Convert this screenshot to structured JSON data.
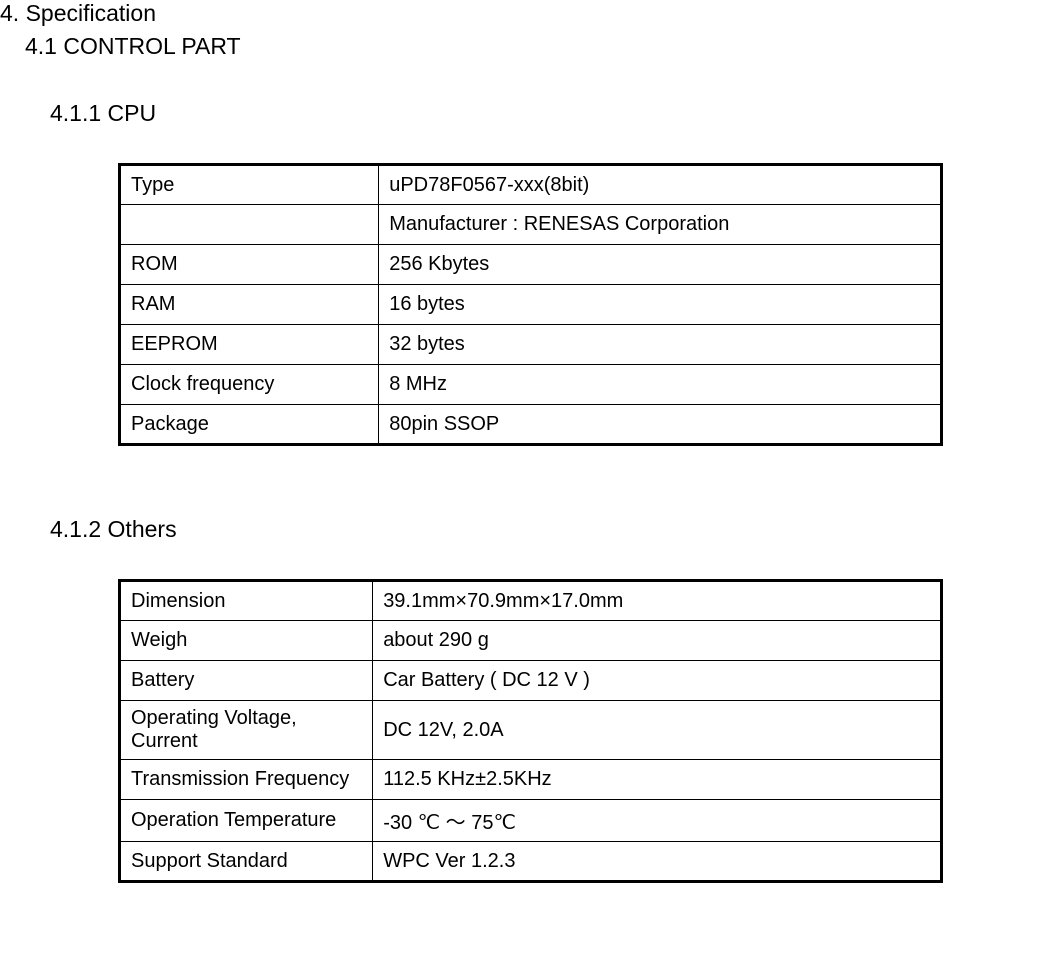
{
  "headings": {
    "section": "4. Specification",
    "subsection": "4.1 CONTROL PART",
    "subsub1": "4.1.1 CPU",
    "subsub2": "4.1.2 Others"
  },
  "cpu_table": {
    "rows": [
      {
        "label": "Type",
        "value": "uPD78F0567-xxx(8bit)"
      },
      {
        "label": "",
        "value": "Manufacturer : RENESAS Corporation"
      },
      {
        "label": "ROM",
        "value": "256 Kbytes"
      },
      {
        "label": "RAM",
        "value": "16 bytes"
      },
      {
        "label": "EEPROM",
        "value": "32 bytes"
      },
      {
        "label": "Clock frequency",
        "value": " 8 MHz"
      },
      {
        "label": "Package",
        "value": "80pin SSOP"
      }
    ]
  },
  "others_table": {
    "rows": [
      {
        "label": "Dimension",
        "value": "39.1mm×70.9mm×17.0mm"
      },
      {
        "label": "Weigh",
        "value": "about 290 g"
      },
      {
        "label": "Battery",
        "value": "Car Battery ( DC 12 V )"
      },
      {
        "label": "Operating Voltage, Current",
        "value": "DC 12V,  2.0A"
      },
      {
        "label": "Transmission Frequency",
        "value": "112.5 KHz±2.5KHz"
      },
      {
        "label": "Operation Temperature",
        "value": "-30 ℃  ～ 75℃"
      },
      {
        "label": "Support Standard",
        "value": "WPC Ver 1.2.3"
      }
    ]
  }
}
